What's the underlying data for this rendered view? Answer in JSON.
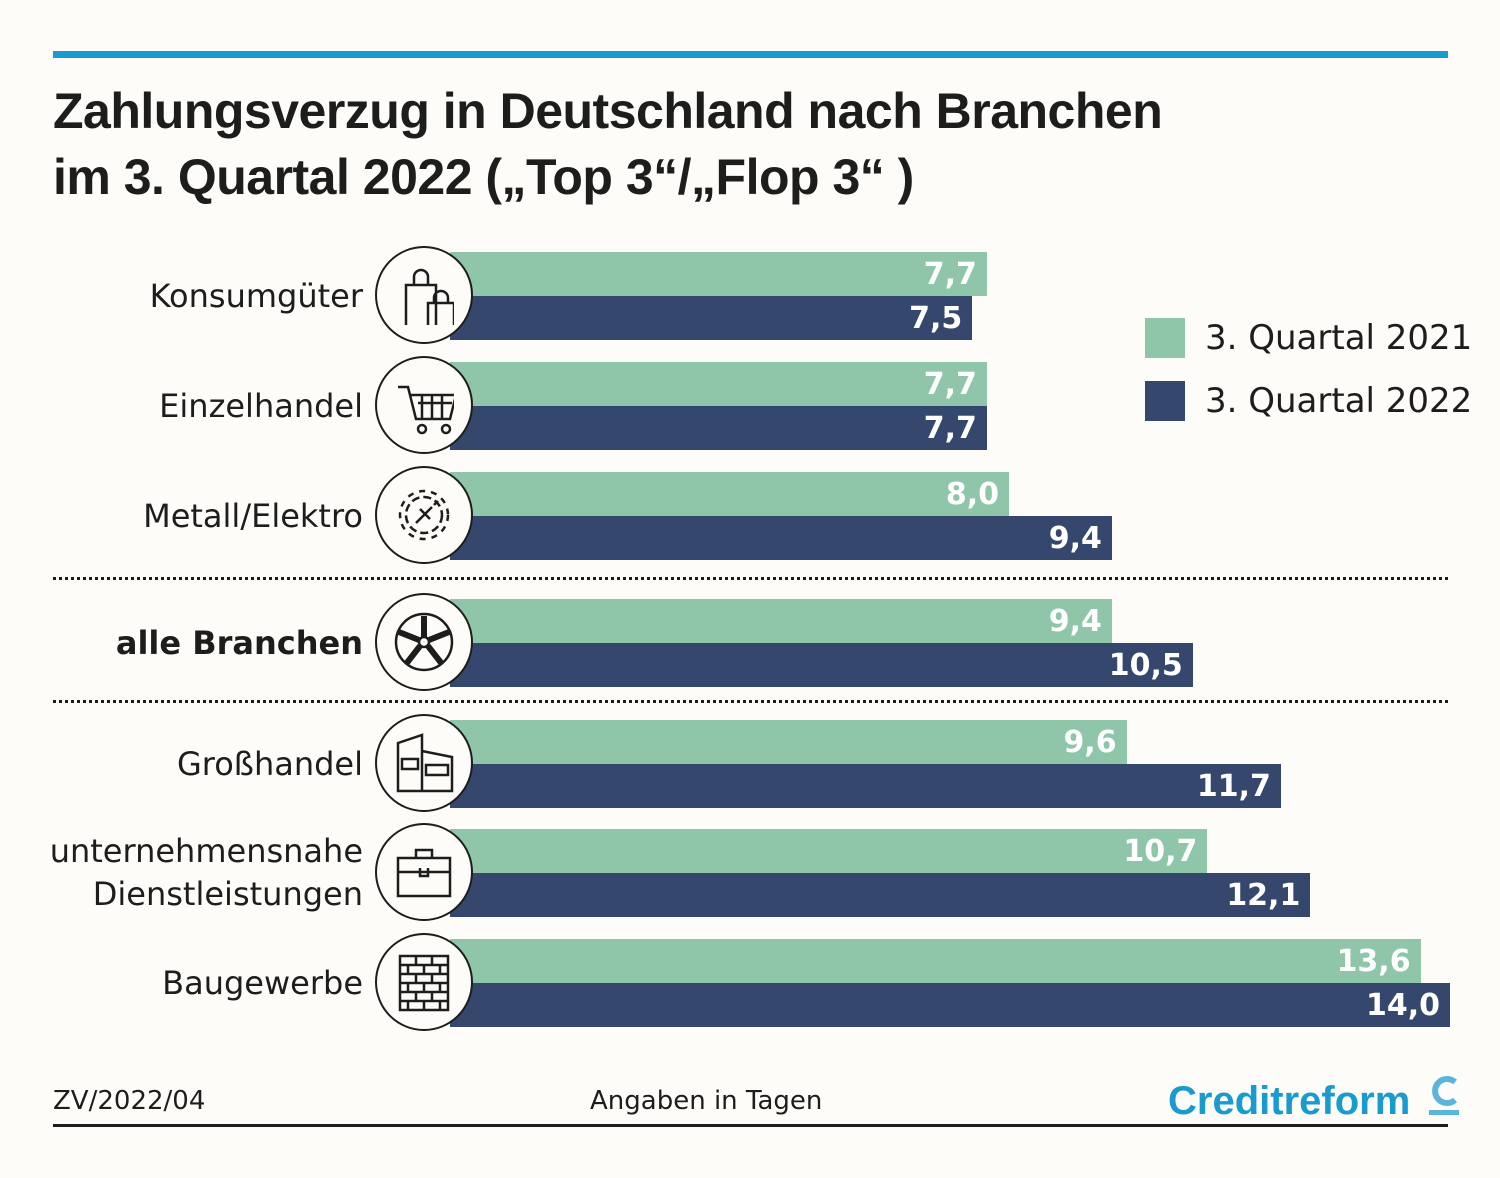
{
  "title_line1": "Zahlungsverzug in Deutschland nach Branchen",
  "title_line2": "im 3. Quartal 2022 („Top 3“/„Flop 3“ )",
  "chart_data": {
    "type": "bar",
    "orientation": "horizontal",
    "title": "Zahlungsverzug in Deutschland nach Branchen im 3. Quartal 2022 („Top 3“/„Flop 3“ )",
    "unit_note": "Angaben in Tagen",
    "categories": [
      "Konsumgüter",
      "Einzelhandel",
      "Metall/Elektro",
      "alle Branchen",
      "Großhandel",
      "unternehmensnahe Dienstleistungen",
      "Baugewerbe"
    ],
    "category_lines": [
      [
        "Konsumgüter"
      ],
      [
        "Einzelhandel"
      ],
      [
        "Metall/Elektro"
      ],
      [
        "alle Branchen"
      ],
      [
        "Großhandel"
      ],
      [
        "unternehmensnahe",
        "Dienstleistungen"
      ],
      [
        "Baugewerbe"
      ]
    ],
    "icons": [
      "shopping-bags-icon",
      "shopping-cart-icon",
      "gear-plug-icon",
      "wheel-icon",
      "warehouse-icon",
      "briefcase-icon",
      "brick-wall-icon"
    ],
    "series": [
      {
        "name": "3. Quartal 2021",
        "color": "#8fc6aa",
        "values": [
          7.7,
          7.7,
          8.0,
          9.4,
          9.6,
          10.7,
          13.6
        ],
        "labels": [
          "7,7",
          "7,7",
          "8,0",
          "9,4",
          "9,6",
          "10,7",
          "13,6"
        ]
      },
      {
        "name": "3. Quartal 2022",
        "color": "#35476d",
        "values": [
          7.5,
          7.7,
          9.4,
          10.5,
          11.7,
          12.1,
          14.0
        ],
        "labels": [
          "7,5",
          "7,7",
          "9,4",
          "10,5",
          "11,7",
          "12,1",
          "14,0"
        ]
      }
    ],
    "legend_position": "top-right",
    "grid": false
  },
  "footer": {
    "code": "ZV/2022/04",
    "note": "Angaben in Tagen",
    "brand": "Creditreform"
  },
  "colors": {
    "accent": "#1a9bd0"
  }
}
